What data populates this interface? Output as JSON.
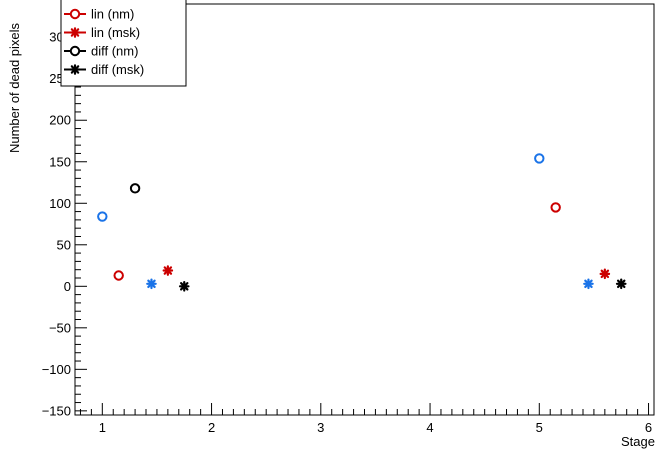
{
  "chart_data": {
    "type": "scatter",
    "title": "",
    "xlabel": "Stage",
    "ylabel": "Number of dead pixels",
    "xlim": [
      0.75,
      6.05
    ],
    "ylim": [
      -155,
      340
    ],
    "x_ticks": [
      1,
      2,
      3,
      4,
      5,
      6
    ],
    "y_ticks": [
      -150,
      -100,
      -50,
      0,
      50,
      100,
      150,
      200,
      250,
      300
    ],
    "grid": false,
    "legend_position": "top-left",
    "series": [
      {
        "name": "lin (nm)",
        "color": "#cc0000",
        "marker": "open-circle",
        "points": [
          [
            1.15,
            13
          ],
          [
            5.15,
            95
          ]
        ]
      },
      {
        "name": "lin (msk)",
        "color": "#cc0000",
        "marker": "star",
        "points": [
          [
            1.6,
            19
          ],
          [
            5.6,
            15
          ]
        ]
      },
      {
        "name": "diff (nm)",
        "color": "#000000",
        "marker": "open-circle",
        "points": [
          [
            1.3,
            118
          ]
        ]
      },
      {
        "name": "diff (msk)",
        "color": "#000000",
        "marker": "star",
        "points": [
          [
            1.75,
            0
          ],
          [
            5.75,
            3
          ]
        ]
      },
      {
        "color": "#1a73e8",
        "marker": "open-circle",
        "points": [
          [
            1.0,
            84
          ],
          [
            5.0,
            154
          ]
        ]
      },
      {
        "color": "#1a73e8",
        "marker": "star",
        "points": [
          [
            1.45,
            3
          ],
          [
            5.45,
            3
          ]
        ]
      }
    ]
  }
}
